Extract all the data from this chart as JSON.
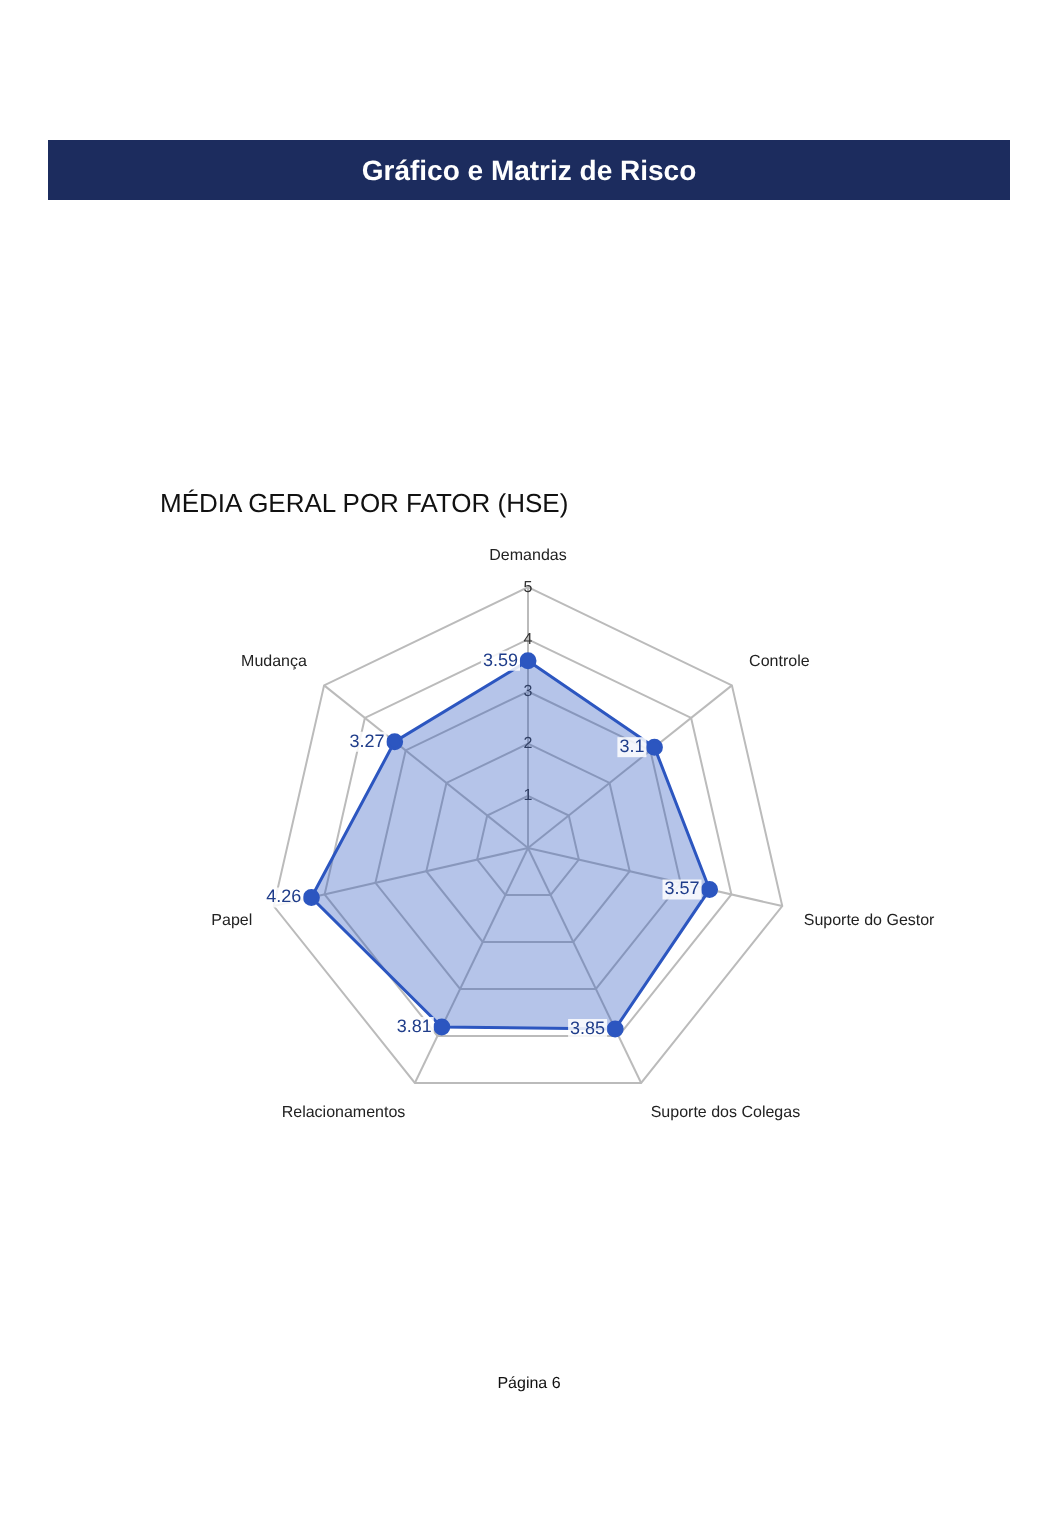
{
  "chart_data": {
    "type": "radar",
    "title": "Gráfico e Matriz de Risco",
    "subtitle": "MÉDIA GERAL POR FATOR (HSE)",
    "categories": [
      "Demandas",
      "Controle",
      "Suporte do Gestor",
      "Suporte dos Colegas",
      "Relacionamentos",
      "Papel",
      "Mudança"
    ],
    "series": [
      {
        "color": "#2c56c0",
        "values": [
          3.59,
          3.1,
          3.57,
          3.85,
          3.81,
          4.26,
          3.27
        ]
      }
    ],
    "ylim": [
      0,
      5
    ],
    "yticks": [
      1,
      2,
      3,
      4,
      5
    ],
    "grid": true,
    "legend": false,
    "marker": "circle",
    "data_labels": true,
    "annotations": [
      "Página 6"
    ]
  }
}
